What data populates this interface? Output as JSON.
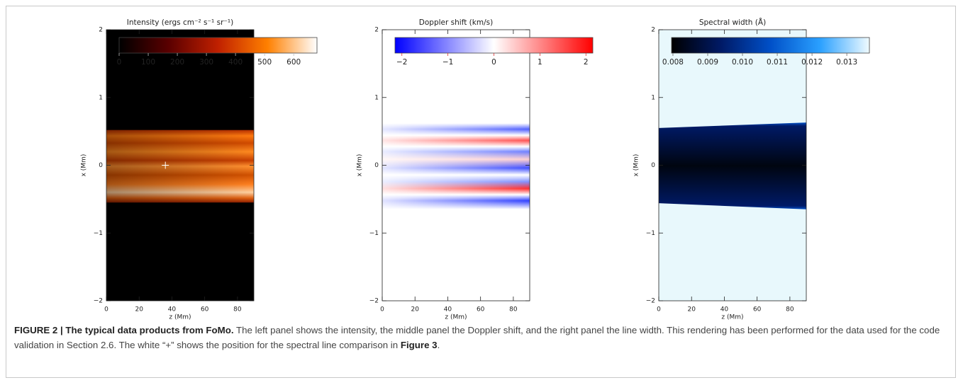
{
  "chart_data": [
    {
      "type": "heatmap",
      "title": "Intensity (ergs cm⁻² s⁻¹ sr⁻¹)",
      "xlabel": "z (Mm)",
      "ylabel": "x (Mm)",
      "xlim": [
        0,
        90
      ],
      "ylim": [
        -2,
        2
      ],
      "xticks": [
        0,
        20,
        40,
        60,
        80
      ],
      "yticks": [
        {
          "value": -2,
          "label": "−2"
        },
        {
          "value": -1,
          "label": "−1"
        },
        0,
        1,
        2
      ],
      "colorbar": {
        "clim": [
          0,
          680
        ],
        "ticks": [
          0,
          100,
          200,
          300,
          400,
          500,
          600
        ],
        "colors": [
          "#000000",
          "#5a0000",
          "#c02000",
          "#ff8000",
          "#ffffff"
        ],
        "label_color": "#bbbbbb"
      },
      "marker": {
        "x": 36,
        "y": 0,
        "color": "#ffffff"
      }
    },
    {
      "type": "heatmap",
      "title": "Doppler shift (km/s)",
      "xlabel": "z (Mm)",
      "ylabel": "x (Mm)",
      "xlim": [
        0,
        90
      ],
      "ylim": [
        -2,
        2
      ],
      "xticks": [
        0,
        20,
        40,
        60,
        80
      ],
      "yticks": [
        {
          "value": -2,
          "label": "−2"
        },
        {
          "value": -1,
          "label": "−1"
        },
        0,
        1,
        2
      ],
      "colorbar": {
        "clim": [
          -2.15,
          2.15
        ],
        "ticks": [
          {
            "value": -2,
            "label": "−2"
          },
          {
            "value": -1,
            "label": "−1"
          },
          0,
          1,
          2
        ],
        "colors": [
          "#0000ff",
          "#ffffff",
          "#ff0000"
        ],
        "label_color": "#e03030"
      }
    },
    {
      "type": "heatmap",
      "title": "Spectral width (Å)",
      "xlabel": "z (Mm)",
      "ylabel": "x (Mm)",
      "xlim": [
        0,
        90
      ],
      "ylim": [
        -2,
        2
      ],
      "xticks": [
        0,
        20,
        40,
        60,
        80
      ],
      "yticks": [
        {
          "value": -2,
          "label": "−2"
        },
        {
          "value": -1,
          "label": "−1"
        },
        0,
        1,
        2
      ],
      "colorbar": {
        "clim": [
          0.00796,
          0.01365
        ],
        "ticks": [
          0.008,
          0.009,
          {
            "value": 0.01,
            "label": "0.010"
          },
          0.011,
          0.012,
          0.013
        ],
        "colors": [
          "#000000",
          "#001a66",
          "#0050c8",
          "#2aa0ff",
          "#f0fbff"
        ],
        "label_color": "#666666"
      }
    }
  ],
  "caption": {
    "label": "FIGURE 2 | The typical data products from FoMo.",
    "text": " The left panel shows the intensity, the middle panel the Doppler shift, and the right panel the line width. This rendering has been performed for the data used for the code validation in Section  2.6. The white “+” shows the position for the spectral line comparison in ",
    "ref": "Figure 3",
    "end": "."
  }
}
